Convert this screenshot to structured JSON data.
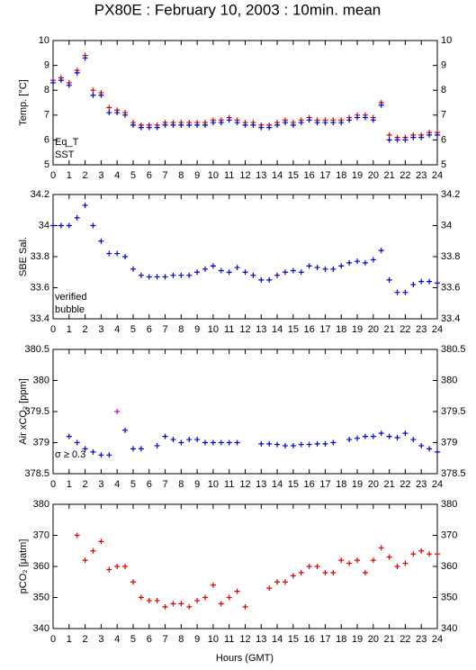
{
  "title": "PX80E : February 10, 2003 : 10min. mean",
  "x_label": "Hours (GMT)",
  "chart_data": [
    {
      "type": "scatter",
      "y_label": "Temp. [°C]",
      "x": [
        0,
        0.5,
        1,
        1.5,
        2,
        2.5,
        3,
        3.5,
        4,
        4.5,
        5,
        5.5,
        6,
        6.5,
        7,
        7.5,
        8,
        8.5,
        9,
        9.5,
        10,
        10.5,
        11,
        11.5,
        12,
        12.5,
        13,
        13.5,
        14,
        14.5,
        15,
        15.5,
        16,
        16.5,
        17,
        17.5,
        18,
        18.5,
        19,
        19.5,
        20,
        20.5,
        21,
        21.5,
        22,
        22.5,
        23,
        23.5,
        24
      ],
      "xlim": [
        0,
        24
      ],
      "xticks": [
        0,
        1,
        2,
        3,
        4,
        5,
        6,
        7,
        8,
        9,
        10,
        11,
        12,
        13,
        14,
        15,
        16,
        17,
        18,
        19,
        20,
        21,
        22,
        23,
        24
      ],
      "ylim": [
        5,
        10
      ],
      "yticks": [
        5,
        6,
        7,
        8,
        9,
        10
      ],
      "series": [
        {
          "name": "Eq_T",
          "color": "#dd0000",
          "values": [
            8.4,
            8.5,
            8.3,
            8.8,
            9.4,
            8.0,
            7.9,
            7.3,
            7.2,
            7.1,
            6.7,
            6.6,
            6.6,
            6.6,
            6.7,
            6.7,
            6.7,
            6.7,
            6.7,
            6.7,
            6.8,
            6.8,
            6.9,
            6.8,
            6.7,
            6.7,
            6.6,
            6.6,
            6.7,
            6.8,
            6.7,
            6.8,
            6.9,
            6.8,
            6.8,
            6.8,
            6.8,
            6.9,
            7.0,
            7.0,
            6.9,
            7.5,
            6.2,
            6.1,
            6.1,
            6.2,
            6.2,
            6.3,
            6.3
          ]
        },
        {
          "name": "SST",
          "color": "#0000cc",
          "values": [
            8.3,
            8.4,
            8.2,
            8.7,
            9.3,
            7.8,
            7.8,
            7.1,
            7.1,
            7.0,
            6.6,
            6.5,
            6.5,
            6.5,
            6.6,
            6.6,
            6.6,
            6.6,
            6.6,
            6.6,
            6.7,
            6.7,
            6.8,
            6.7,
            6.6,
            6.6,
            6.5,
            6.5,
            6.6,
            6.7,
            6.6,
            6.7,
            6.8,
            6.7,
            6.7,
            6.7,
            6.7,
            6.8,
            6.9,
            6.9,
            6.8,
            7.4,
            6.0,
            6.0,
            6.0,
            6.1,
            6.1,
            6.2,
            6.2
          ]
        }
      ]
    },
    {
      "type": "scatter",
      "y_label": "SBE Sal.",
      "x": [
        0,
        0.5,
        1,
        1.5,
        2,
        2.5,
        3,
        3.5,
        4,
        4.5,
        5,
        5.5,
        6,
        6.5,
        7,
        7.5,
        8,
        8.5,
        9,
        9.5,
        10,
        10.5,
        11,
        11.5,
        12,
        12.5,
        13,
        13.5,
        14,
        14.5,
        15,
        15.5,
        16,
        16.5,
        17,
        17.5,
        18,
        18.5,
        19,
        19.5,
        20,
        20.5,
        21,
        21.5,
        22,
        22.5,
        23,
        23.5,
        24
      ],
      "xlim": [
        0,
        24
      ],
      "xticks": [
        0,
        1,
        2,
        3,
        4,
        5,
        6,
        7,
        8,
        9,
        10,
        11,
        12,
        13,
        14,
        15,
        16,
        17,
        18,
        19,
        20,
        21,
        22,
        23,
        24
      ],
      "ylim": [
        33.4,
        34.2
      ],
      "yticks": [
        33.4,
        33.6,
        33.8,
        34,
        34.2
      ],
      "series": [
        {
          "name": "verified",
          "color": "#0000cc",
          "values": [
            34.0,
            34.0,
            34.0,
            34.05,
            34.13,
            34.0,
            33.9,
            33.82,
            33.82,
            33.8,
            33.72,
            33.68,
            33.67,
            33.67,
            33.67,
            33.68,
            33.68,
            33.68,
            33.7,
            33.72,
            33.74,
            33.71,
            33.7,
            33.73,
            33.7,
            33.68,
            33.65,
            33.65,
            33.68,
            33.7,
            33.71,
            33.7,
            33.74,
            33.73,
            33.72,
            33.72,
            33.74,
            33.76,
            33.77,
            33.76,
            33.78,
            33.84,
            33.65,
            33.57,
            33.57,
            33.62,
            33.64,
            33.64,
            33.63
          ]
        },
        {
          "name": "bubble",
          "color": "#cc00cc",
          "values": [
            null,
            null,
            null,
            null,
            null,
            null,
            null,
            null,
            null,
            null,
            null,
            null,
            null,
            null,
            null,
            null,
            null,
            null,
            null,
            null,
            null,
            null,
            null,
            null,
            null,
            null,
            null,
            null,
            null,
            null,
            null,
            null,
            null,
            null,
            null,
            null,
            null,
            null,
            null,
            null,
            null,
            null,
            null,
            null,
            null,
            null,
            null,
            null,
            null
          ]
        }
      ]
    },
    {
      "type": "scatter",
      "y_label": "Air xCO₂ [ppm]",
      "annotation": "σ ≥ 0.3",
      "x": [
        0,
        0.5,
        1,
        1.5,
        2,
        2.5,
        3,
        3.5,
        4,
        4.5,
        5,
        5.5,
        6,
        6.5,
        7,
        7.5,
        8,
        8.5,
        9,
        9.5,
        10,
        10.5,
        11,
        11.5,
        12,
        12.5,
        13,
        13.5,
        14,
        14.5,
        15,
        15.5,
        16,
        16.5,
        17,
        17.5,
        18,
        18.5,
        19,
        19.5,
        20,
        20.5,
        21,
        21.5,
        22,
        22.5,
        23,
        23.5,
        24
      ],
      "xlim": [
        0,
        24
      ],
      "xticks": [
        0,
        1,
        2,
        3,
        4,
        5,
        6,
        7,
        8,
        9,
        10,
        11,
        12,
        13,
        14,
        15,
        16,
        17,
        18,
        19,
        20,
        21,
        22,
        23,
        24
      ],
      "ylim": [
        378.5,
        380.5
      ],
      "yticks": [
        378.5,
        379,
        379.5,
        380,
        380.5
      ],
      "series": [
        {
          "color": "#0000cc",
          "values": [
            null,
            null,
            379.1,
            379.0,
            378.9,
            378.85,
            378.8,
            378.8,
            null,
            379.2,
            378.9,
            378.9,
            null,
            378.95,
            379.1,
            379.05,
            379.0,
            379.05,
            379.05,
            379.0,
            379.0,
            379.0,
            379.0,
            379.0,
            null,
            null,
            378.98,
            378.98,
            378.97,
            378.95,
            378.95,
            378.97,
            378.97,
            378.98,
            378.98,
            379.0,
            null,
            379.05,
            379.07,
            379.1,
            379.1,
            379.15,
            379.1,
            379.08,
            379.15,
            379.05,
            378.95,
            378.9,
            378.85
          ]
        },
        {
          "color": "#cc00cc",
          "values": [
            null,
            null,
            null,
            null,
            null,
            null,
            null,
            null,
            379.5,
            null,
            null,
            null,
            null,
            null,
            null,
            null,
            null,
            null,
            null,
            null,
            null,
            null,
            null,
            null,
            null,
            null,
            null,
            null,
            null,
            null,
            null,
            null,
            null,
            null,
            null,
            null,
            null,
            null,
            null,
            null,
            null,
            null,
            null,
            null,
            null,
            null,
            null,
            null,
            null
          ]
        }
      ]
    },
    {
      "type": "scatter",
      "y_label": "pCO₂ [μatm]",
      "x": [
        0,
        0.5,
        1,
        1.5,
        2,
        2.5,
        3,
        3.5,
        4,
        4.5,
        5,
        5.5,
        6,
        6.5,
        7,
        7.5,
        8,
        8.5,
        9,
        9.5,
        10,
        10.5,
        11,
        11.5,
        12,
        12.5,
        13,
        13.5,
        14,
        14.5,
        15,
        15.5,
        16,
        16.5,
        17,
        17.5,
        18,
        18.5,
        19,
        19.5,
        20,
        20.5,
        21,
        21.5,
        22,
        22.5,
        23,
        23.5,
        24
      ],
      "xlim": [
        0,
        24
      ],
      "xticks": [
        0,
        1,
        2,
        3,
        4,
        5,
        6,
        7,
        8,
        9,
        10,
        11,
        12,
        13,
        14,
        15,
        16,
        17,
        18,
        19,
        20,
        21,
        22,
        23,
        24
      ],
      "ylim": [
        340,
        380
      ],
      "yticks": [
        340,
        350,
        360,
        370,
        380
      ],
      "series": [
        {
          "color": "#dd0000",
          "values": [
            null,
            null,
            null,
            370,
            362,
            365,
            368,
            359,
            360,
            360,
            355,
            350,
            349,
            349,
            347,
            348,
            348,
            347,
            349,
            350,
            354,
            348,
            350,
            352,
            347,
            null,
            null,
            353,
            355,
            355,
            357,
            358,
            360,
            360,
            358,
            358,
            362,
            361,
            362,
            358,
            362,
            366,
            363,
            360,
            361,
            364,
            365,
            364,
            364
          ]
        }
      ]
    }
  ]
}
